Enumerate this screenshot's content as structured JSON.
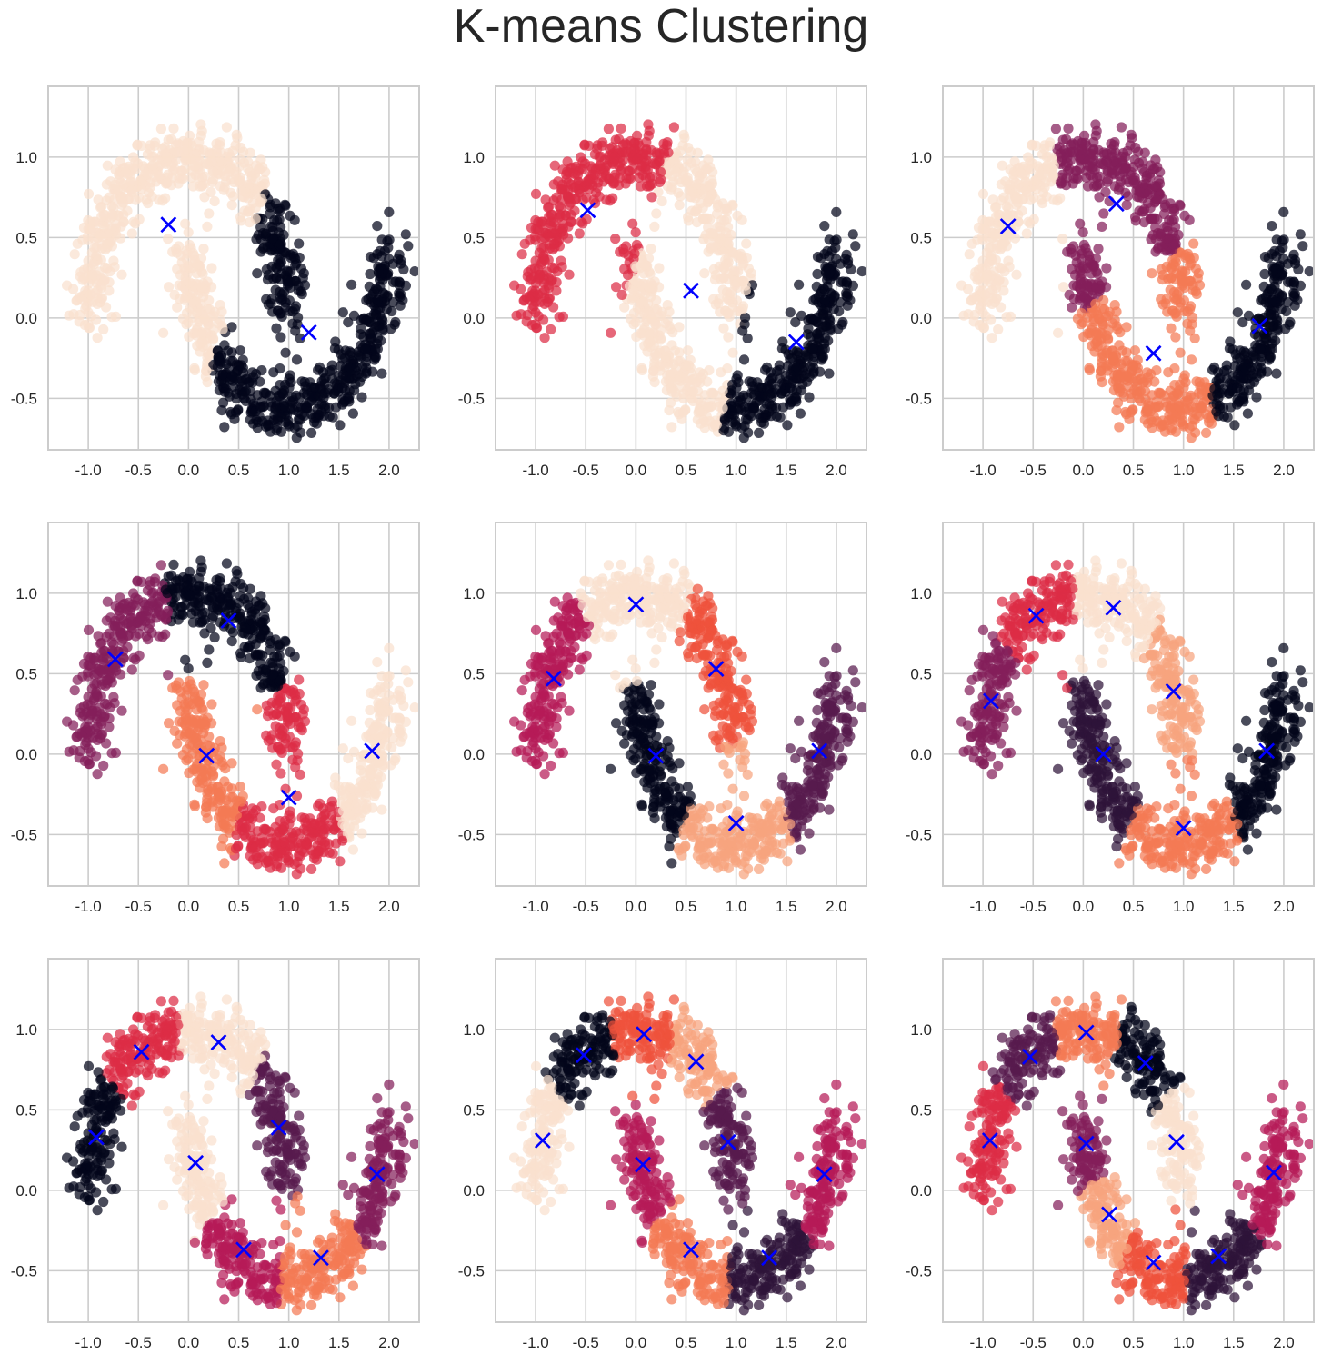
{
  "figure": {
    "title": "K-means Clustering"
  },
  "palette": [
    "#03051a",
    "#2e1339",
    "#581a4d",
    "#841e5a",
    "#b61a58",
    "#dd2c45",
    "#ef523c",
    "#f47a54",
    "#f6a47e",
    "#fae0cf"
  ],
  "center_color": "#0000ff",
  "chart_data": [
    {
      "type": "scatter",
      "k": 2,
      "xlim": [
        -1.4,
        2.3
      ],
      "ylim": [
        -0.82,
        1.44
      ],
      "xticks": [
        "-1.0",
        "-0.5",
        "0.0",
        "0.5",
        "1.0",
        "1.5",
        "2.0"
      ],
      "yticks": [
        "-0.5",
        "0.0",
        "0.5",
        "1.0"
      ],
      "grid": true,
      "clusters": [
        {
          "color_index": 9
        },
        {
          "color_index": 0
        }
      ],
      "centers": [
        [
          -0.2,
          0.58
        ],
        [
          1.2,
          -0.09
        ]
      ]
    },
    {
      "type": "scatter",
      "k": 3,
      "xlim": [
        -1.4,
        2.3
      ],
      "ylim": [
        -0.82,
        1.44
      ],
      "xticks": [
        "-1.0",
        "-0.5",
        "0.0",
        "0.5",
        "1.0",
        "1.5",
        "2.0"
      ],
      "yticks": [
        "-0.5",
        "0.0",
        "0.5",
        "1.0"
      ],
      "grid": true,
      "clusters": [
        {
          "color_index": 5
        },
        {
          "color_index": 9
        },
        {
          "color_index": 0
        }
      ],
      "centers": [
        [
          -0.48,
          0.67
        ],
        [
          0.55,
          0.17
        ],
        [
          1.6,
          -0.15
        ]
      ]
    },
    {
      "type": "scatter",
      "k": 4,
      "xlim": [
        -1.4,
        2.3
      ],
      "ylim": [
        -0.82,
        1.44
      ],
      "xticks": [
        "-1.0",
        "-0.5",
        "0.0",
        "0.5",
        "1.0",
        "1.5",
        "2.0"
      ],
      "yticks": [
        "-0.5",
        "0.0",
        "0.5",
        "1.0"
      ],
      "grid": true,
      "clusters": [
        {
          "color_index": 9
        },
        {
          "color_index": 3
        },
        {
          "color_index": 7
        },
        {
          "color_index": 0
        }
      ],
      "centers": [
        [
          -0.75,
          0.57
        ],
        [
          0.33,
          0.71
        ],
        [
          0.7,
          -0.22
        ],
        [
          1.76,
          -0.05
        ]
      ]
    },
    {
      "type": "scatter",
      "k": 5,
      "xlim": [
        -1.4,
        2.3
      ],
      "ylim": [
        -0.82,
        1.44
      ],
      "xticks": [
        "-1.0",
        "-0.5",
        "0.0",
        "0.5",
        "1.0",
        "1.5",
        "2.0"
      ],
      "yticks": [
        "-0.5",
        "0.0",
        "0.5",
        "1.0"
      ],
      "grid": true,
      "clusters": [
        {
          "color_index": 3
        },
        {
          "color_index": 0
        },
        {
          "color_index": 7
        },
        {
          "color_index": 5
        },
        {
          "color_index": 9
        }
      ],
      "centers": [
        [
          -0.73,
          0.59
        ],
        [
          0.4,
          0.83
        ],
        [
          0.18,
          -0.01
        ],
        [
          1.0,
          -0.27
        ],
        [
          1.83,
          0.02
        ]
      ]
    },
    {
      "type": "scatter",
      "k": 6,
      "xlim": [
        -1.4,
        2.3
      ],
      "ylim": [
        -0.82,
        1.44
      ],
      "xticks": [
        "-1.0",
        "-0.5",
        "0.0",
        "0.5",
        "1.0",
        "1.5",
        "2.0"
      ],
      "yticks": [
        "-0.5",
        "0.0",
        "0.5",
        "1.0"
      ],
      "grid": true,
      "clusters": [
        {
          "color_index": 4
        },
        {
          "color_index": 9
        },
        {
          "color_index": 6
        },
        {
          "color_index": 0
        },
        {
          "color_index": 8
        },
        {
          "color_index": 2
        }
      ],
      "centers": [
        [
          -0.82,
          0.47
        ],
        [
          0.0,
          0.93
        ],
        [
          0.8,
          0.53
        ],
        [
          0.2,
          -0.01
        ],
        [
          1.0,
          -0.43
        ],
        [
          1.83,
          0.02
        ]
      ]
    },
    {
      "type": "scatter",
      "k": 7,
      "xlim": [
        -1.4,
        2.3
      ],
      "ylim": [
        -0.82,
        1.44
      ],
      "xticks": [
        "-1.0",
        "-0.5",
        "0.0",
        "0.5",
        "1.0",
        "1.5",
        "2.0"
      ],
      "yticks": [
        "-0.5",
        "0.0",
        "0.5",
        "1.0"
      ],
      "grid": true,
      "clusters": [
        {
          "color_index": 3
        },
        {
          "color_index": 5
        },
        {
          "color_index": 9
        },
        {
          "color_index": 8
        },
        {
          "color_index": 1
        },
        {
          "color_index": 7
        },
        {
          "color_index": 0
        }
      ],
      "centers": [
        [
          -0.92,
          0.33
        ],
        [
          -0.47,
          0.86
        ],
        [
          0.3,
          0.91
        ],
        [
          0.9,
          0.39
        ],
        [
          0.2,
          0.0
        ],
        [
          1.0,
          -0.46
        ],
        [
          1.83,
          0.02
        ]
      ]
    },
    {
      "type": "scatter",
      "k": 8,
      "xlim": [
        -1.4,
        2.3
      ],
      "ylim": [
        -0.82,
        1.44
      ],
      "xticks": [
        "-1.0",
        "-0.5",
        "0.0",
        "0.5",
        "1.0",
        "1.5",
        "2.0"
      ],
      "yticks": [
        "-0.5",
        "0.0",
        "0.5",
        "1.0"
      ],
      "grid": true,
      "clusters": [
        {
          "color_index": 0
        },
        {
          "color_index": 5
        },
        {
          "color_index": 9
        },
        {
          "color_index": 2
        },
        {
          "color_index": 9
        },
        {
          "color_index": 4
        },
        {
          "color_index": 7
        },
        {
          "color_index": 3
        }
      ],
      "centers": [
        [
          -0.92,
          0.33
        ],
        [
          -0.47,
          0.86
        ],
        [
          0.3,
          0.92
        ],
        [
          0.9,
          0.39
        ],
        [
          0.07,
          0.17
        ],
        [
          0.55,
          -0.37
        ],
        [
          1.32,
          -0.42
        ],
        [
          1.88,
          0.1
        ]
      ]
    },
    {
      "type": "scatter",
      "k": 9,
      "xlim": [
        -1.4,
        2.3
      ],
      "ylim": [
        -0.82,
        1.44
      ],
      "xticks": [
        "-1.0",
        "-0.5",
        "0.0",
        "0.5",
        "1.0",
        "1.5",
        "2.0"
      ],
      "yticks": [
        "-0.5",
        "0.0",
        "0.5",
        "1.0"
      ],
      "grid": true,
      "clusters": [
        {
          "color_index": 9
        },
        {
          "color_index": 0
        },
        {
          "color_index": 6
        },
        {
          "color_index": 8
        },
        {
          "color_index": 2
        },
        {
          "color_index": 4
        },
        {
          "color_index": 7
        },
        {
          "color_index": 1
        },
        {
          "color_index": 4
        }
      ],
      "centers": [
        [
          -0.93,
          0.31
        ],
        [
          -0.52,
          0.84
        ],
        [
          0.08,
          0.97
        ],
        [
          0.6,
          0.8
        ],
        [
          0.92,
          0.3
        ],
        [
          0.07,
          0.16
        ],
        [
          0.55,
          -0.37
        ],
        [
          1.33,
          -0.42
        ],
        [
          1.88,
          0.1
        ]
      ]
    },
    {
      "type": "scatter",
      "k": 10,
      "xlim": [
        -1.4,
        2.3
      ],
      "ylim": [
        -0.82,
        1.44
      ],
      "xticks": [
        "-1.0",
        "-0.5",
        "0.0",
        "0.5",
        "1.0",
        "1.5",
        "2.0"
      ],
      "yticks": [
        "-0.5",
        "0.0",
        "0.5",
        "1.0"
      ],
      "grid": true,
      "clusters": [
        {
          "color_index": 5
        },
        {
          "color_index": 2
        },
        {
          "color_index": 7
        },
        {
          "color_index": 0
        },
        {
          "color_index": 9
        },
        {
          "color_index": 3
        },
        {
          "color_index": 8
        },
        {
          "color_index": 6
        },
        {
          "color_index": 1
        },
        {
          "color_index": 4
        }
      ],
      "centers": [
        [
          -0.93,
          0.31
        ],
        [
          -0.53,
          0.83
        ],
        [
          0.03,
          0.98
        ],
        [
          0.62,
          0.79
        ],
        [
          0.93,
          0.3
        ],
        [
          0.03,
          0.29
        ],
        [
          0.26,
          -0.15
        ],
        [
          0.7,
          -0.45
        ],
        [
          1.35,
          -0.41
        ],
        [
          1.9,
          0.11
        ]
      ]
    }
  ]
}
